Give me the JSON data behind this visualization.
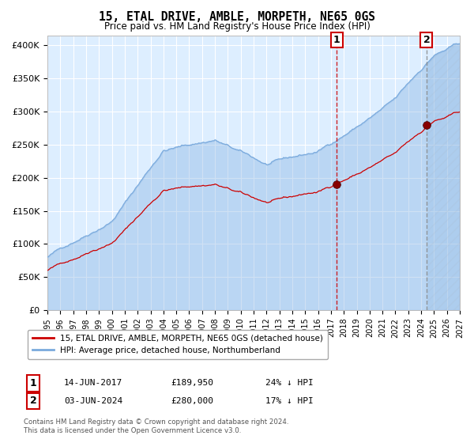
{
  "title": "15, ETAL DRIVE, AMBLE, MORPETH, NE65 0GS",
  "subtitle": "Price paid vs. HM Land Registry's House Price Index (HPI)",
  "hpi_color": "#7aaadd",
  "price_color": "#cc0000",
  "bg_color": "#ddeeff",
  "annotation1_date": "14-JUN-2017",
  "annotation1_price": "£189,950",
  "annotation1_pct": "24% ↓ HPI",
  "annotation1_year": 2017.45,
  "annotation1_value": 189950,
  "annotation2_date": "03-JUN-2024",
  "annotation2_price": "£280,000",
  "annotation2_pct": "17% ↓ HPI",
  "annotation2_year": 2024.42,
  "annotation2_value": 280000,
  "ylabel_ticks": [
    0,
    50000,
    100000,
    150000,
    200000,
    250000,
    300000,
    350000,
    400000
  ],
  "ylabel_labels": [
    "£0",
    "£50K",
    "£100K",
    "£150K",
    "£200K",
    "£250K",
    "£300K",
    "£350K",
    "£400K"
  ],
  "xmin": 1995,
  "xmax": 2027,
  "ymin": 0,
  "ymax": 415000,
  "legend1": "15, ETAL DRIVE, AMBLE, MORPETH, NE65 0GS (detached house)",
  "legend2": "HPI: Average price, detached house, Northumberland",
  "footer": "Contains HM Land Registry data © Crown copyright and database right 2024.\nThis data is licensed under the Open Government Licence v3.0."
}
